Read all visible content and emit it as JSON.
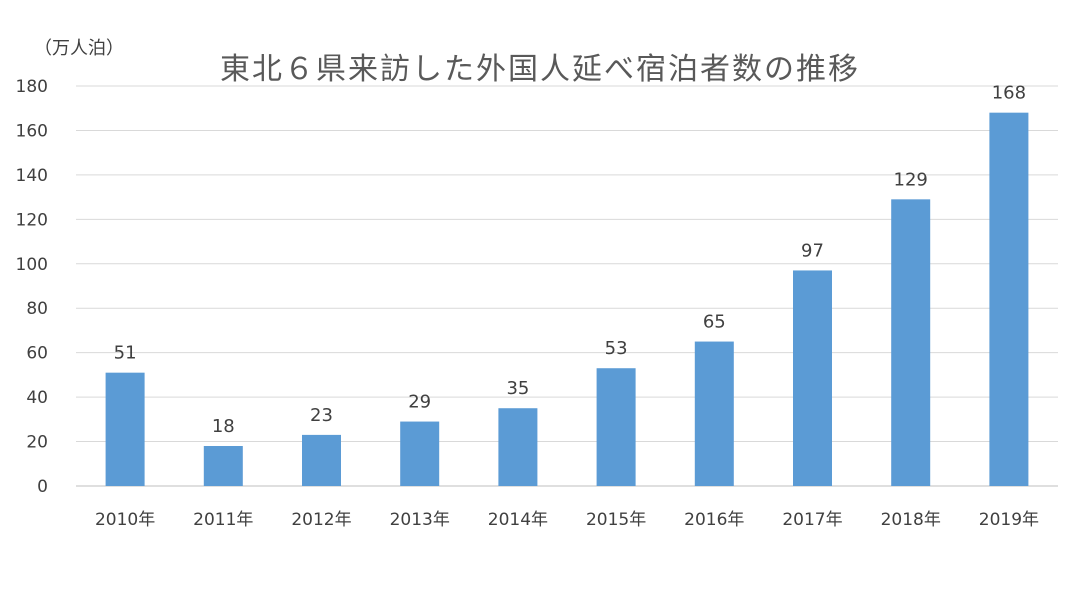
{
  "chart_data": {
    "type": "bar",
    "title": "東北６県来訪した外国人延べ宿泊者数の推移",
    "ylabel": "（万人泊）",
    "xlabel": "",
    "categories": [
      "2010年",
      "2011年",
      "2012年",
      "2013年",
      "2014年",
      "2015年",
      "2016年",
      "2017年",
      "2018年",
      "2019年"
    ],
    "values": [
      51,
      18,
      23,
      29,
      35,
      53,
      65,
      97,
      129,
      168
    ],
    "ylim": [
      0,
      180
    ],
    "yticks": [
      0,
      20,
      40,
      60,
      80,
      100,
      120,
      140,
      160,
      180
    ],
    "grid": true,
    "legend": "none",
    "bar_color": "#5B9BD5",
    "grid_color": "#d9d9d9"
  }
}
